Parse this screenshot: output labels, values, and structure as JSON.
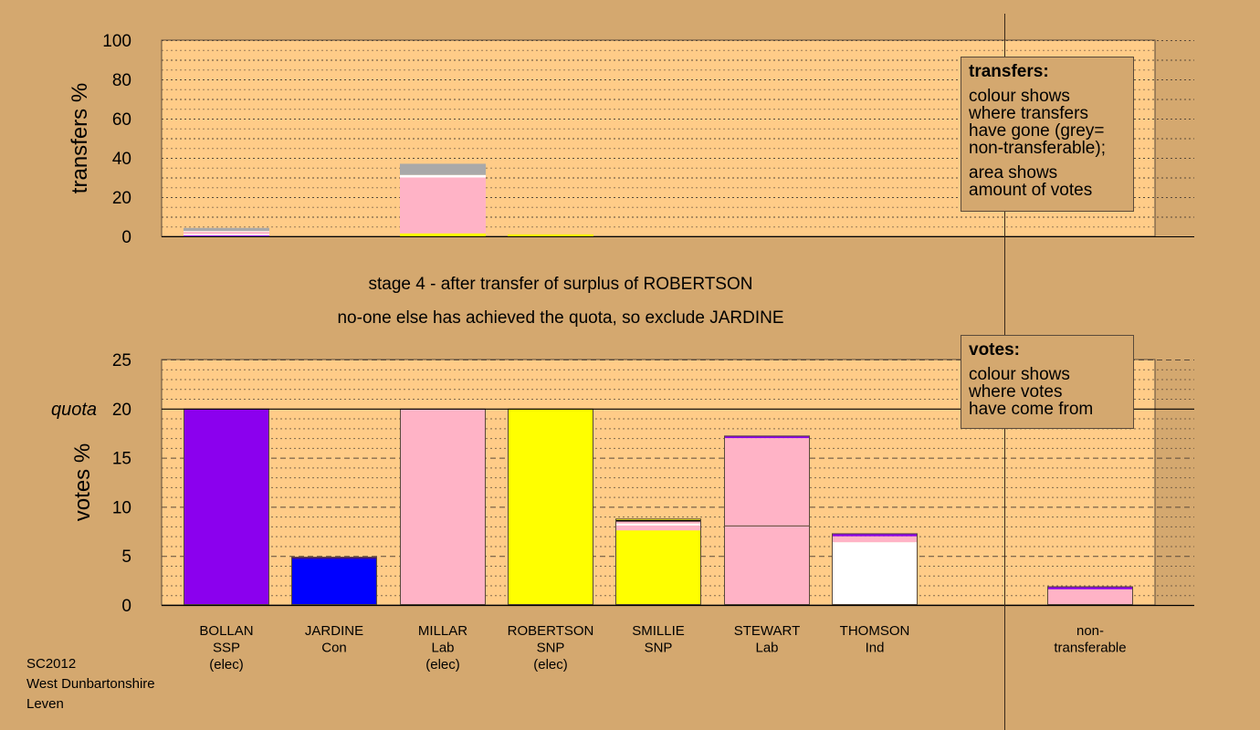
{
  "chart_data": {
    "type": "bar",
    "stage_caption": "stage 4 - after transfer of surplus of ROBERTSON",
    "action_caption": "no-one else has achieved the quota, so exclude JARDINE",
    "transfers_panel": {
      "ylabel": "transfers %",
      "ylim": [
        0,
        100
      ],
      "yticks": [
        "0",
        "20",
        "40",
        "60",
        "80",
        "100"
      ],
      "bars": [
        {
          "candidate": "BOLLAN",
          "segments": [
            {
              "color": "#8b00ee",
              "value": 0.5
            },
            {
              "color": "#ffffff",
              "value": 0.8
            },
            {
              "color": "#ffb3c6",
              "value": 1.0
            },
            {
              "color": "#ffffff",
              "value": 0.4
            },
            {
              "color": "#a9a9a9",
              "value": 1.6
            }
          ]
        },
        {
          "candidate": "MILLAR",
          "segments": [
            {
              "color": "#ffff00",
              "value": 1.5
            },
            {
              "color": "#ffb3c6",
              "value": 28.5
            },
            {
              "color": "#ffffff",
              "value": 1.3
            },
            {
              "color": "#a9a9a9",
              "value": 5.7
            }
          ]
        },
        {
          "candidate": "ROBERTSON",
          "segments": [
            {
              "color": "#ffff00",
              "value": 1.0
            }
          ]
        }
      ]
    },
    "votes_panel": {
      "ylabel": "votes %",
      "ylim": [
        0,
        25
      ],
      "yticks": [
        "0",
        "5",
        "10",
        "15",
        "20",
        "25"
      ],
      "quota": 20,
      "quota_label": "quota",
      "bars": [
        {
          "label": [
            "BOLLAN",
            "SSP",
            "(elec)"
          ],
          "segments": [
            {
              "color": "#8b00ee",
              "value": 20.0
            }
          ]
        },
        {
          "label": [
            "JARDINE",
            "Con"
          ],
          "segments": [
            {
              "color": "#0000ff",
              "value": 4.7
            },
            {
              "color": "#3a0080",
              "value": 0.2
            }
          ]
        },
        {
          "label": [
            "MILLAR",
            "Lab",
            "(elec)"
          ],
          "segments": [
            {
              "color": "#ffb3c6",
              "value": 20.0
            }
          ]
        },
        {
          "label": [
            "ROBERTSON",
            "SNP",
            "(elec)"
          ],
          "segments": [
            {
              "color": "#ffff00",
              "value": 20.0
            }
          ]
        },
        {
          "label": [
            "SMILLIE",
            "SNP"
          ],
          "segments": [
            {
              "color": "#ffff00",
              "value": 7.6
            },
            {
              "color": "#ffb3c6",
              "value": 0.5
            },
            {
              "color": "#ffffff",
              "value": 0.2
            },
            {
              "color": "#ffb3c6",
              "value": 0.2
            },
            {
              "color": "#000000",
              "value": 0.15
            },
            {
              "color": "#ffff00",
              "value": 0.15
            }
          ]
        },
        {
          "label": [
            "STEWART",
            "Lab"
          ],
          "segments": [
            {
              "color": "#ffb3c6",
              "value": 8.1,
              "border": true
            },
            {
              "color": "#ffb3c6",
              "value": 8.9,
              "border": true
            },
            {
              "color": "#8b00ee",
              "value": 0.25
            }
          ]
        },
        {
          "label": [
            "THOMSON",
            "Ind"
          ],
          "segments": [
            {
              "color": "#ffffff",
              "value": 6.4
            },
            {
              "color": "#ffb3c6",
              "value": 0.6
            },
            {
              "color": "#8b00ee",
              "value": 0.3
            }
          ]
        }
      ],
      "nontransferable": {
        "label": [
          "non-",
          "transferable"
        ],
        "segments": [
          {
            "color": "#ffb3c6",
            "value": 1.6
          },
          {
            "color": "#8b00ee",
            "value": 0.3
          }
        ]
      }
    }
  },
  "legends": {
    "transfers": {
      "title": "transfers:",
      "lines1": [
        "colour shows",
        "where transfers",
        "have gone (grey=",
        "non-transferable);"
      ],
      "lines2": [
        "area shows",
        "amount of votes"
      ]
    },
    "votes": {
      "title": "votes:",
      "lines": [
        "colour shows",
        "where votes",
        "have come from"
      ]
    }
  },
  "footer": {
    "line1": "SC2012",
    "line2": "West Dunbartonshire",
    "line3": "Leven"
  },
  "colors": {
    "background": "#d4a86f",
    "plot_area": "#ffcc88",
    "grid": "#5a4a3a"
  }
}
